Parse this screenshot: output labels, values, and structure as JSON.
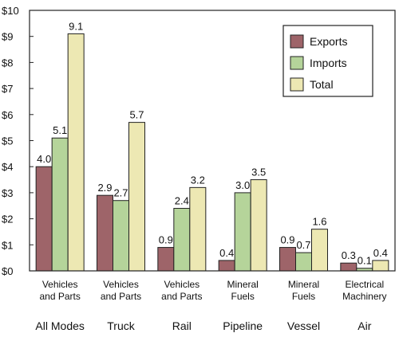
{
  "chart_data": {
    "type": "bar",
    "categories": [
      {
        "line1": "Vehicles",
        "line2": "and Parts",
        "mode": "All Modes"
      },
      {
        "line1": "Vehicles",
        "line2": "and Parts",
        "mode": "Truck"
      },
      {
        "line1": "Vehicles",
        "line2": "and Parts",
        "mode": "Rail"
      },
      {
        "line1": "Mineral",
        "line2": "Fuels",
        "mode": "Pipeline"
      },
      {
        "line1": "Mineral",
        "line2": "Fuels",
        "mode": "Vessel"
      },
      {
        "line1": "Electrical",
        "line2": "Machinery",
        "mode": "Air"
      }
    ],
    "series": [
      {
        "name": "Exports",
        "color": "#9e6469",
        "values": [
          4.0,
          2.9,
          0.9,
          0.4,
          0.9,
          0.3
        ],
        "labels": [
          "4.0",
          "2.9",
          "0.9",
          "0.4",
          "0.9",
          "0.3"
        ]
      },
      {
        "name": "Imports",
        "color": "#b5d49a",
        "values": [
          5.1,
          2.7,
          2.4,
          3.0,
          0.7,
          0.1
        ],
        "labels": [
          "5.1",
          "2.7",
          "2.4",
          "3.0",
          "0.7",
          "0.1"
        ]
      },
      {
        "name": "Total",
        "color": "#ede8b3",
        "values": [
          9.1,
          5.7,
          3.2,
          3.5,
          1.6,
          0.4
        ],
        "labels": [
          "9.1",
          "5.7",
          "3.2",
          "3.5",
          "1.6",
          "0.4"
        ]
      }
    ],
    "y_ticks": [
      "$0",
      "$1",
      "$2",
      "$3",
      "$4",
      "$5",
      "$6",
      "$7",
      "$8",
      "$9",
      "$10"
    ],
    "ylim": [
      0,
      10
    ],
    "grid": false,
    "legend_position": "top-right"
  }
}
